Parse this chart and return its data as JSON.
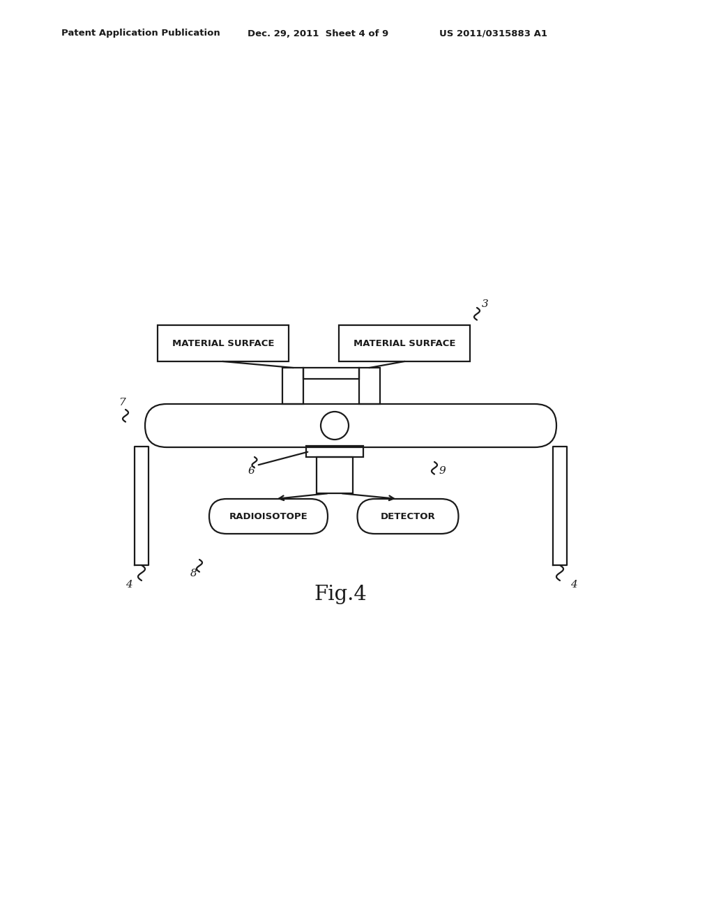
{
  "bg_color": "#ffffff",
  "line_color": "#1a1a1a",
  "header_text_left": "Patent Application Publication",
  "header_text_mid": "Dec. 29, 2011  Sheet 4 of 9",
  "header_text_right": "US 2011/0315883 A1",
  "fig_label": "Fig.4",
  "label_3": "3",
  "label_4_left": "4",
  "label_4_right": "4",
  "label_6": "6",
  "label_7": "7",
  "label_8": "8",
  "label_9": "9",
  "box1_text": "MATERIAL SURFACE",
  "box2_text": "MATERIAL SURFACE",
  "pill1_text": "RADIOISOTOPE",
  "pill2_text": "DETECTOR",
  "lw": 1.6
}
